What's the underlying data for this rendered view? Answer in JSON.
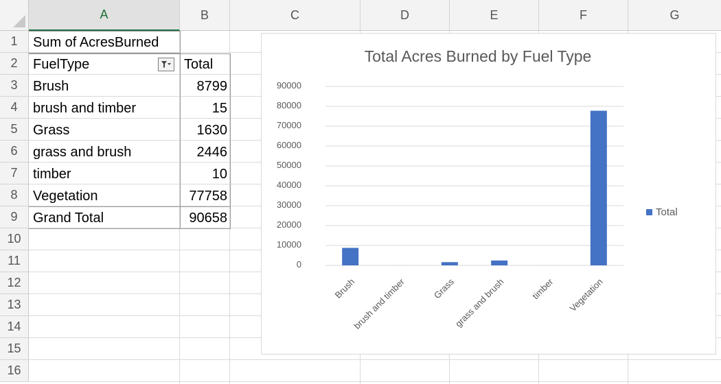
{
  "sheet": {
    "column_headers": [
      "A",
      "B",
      "C",
      "D",
      "E",
      "F",
      "G"
    ],
    "selected_column": "A",
    "row_headers": [
      "1",
      "2",
      "3",
      "4",
      "5",
      "6",
      "7",
      "8",
      "9",
      "10",
      "11",
      "12",
      "13",
      "14",
      "15",
      "16"
    ]
  },
  "pivot": {
    "title_label": "Sum of AcresBurned",
    "field_label": "FuelType",
    "value_header": "Total",
    "rows": [
      {
        "label": "Brush",
        "value": "8799"
      },
      {
        "label": "brush and timber",
        "value": "15"
      },
      {
        "label": "Grass",
        "value": "1630"
      },
      {
        "label": "grass and brush",
        "value": "2446"
      },
      {
        "label": "timber",
        "value": "10"
      },
      {
        "label": "Vegetation",
        "value": "77758"
      }
    ],
    "grand_total_label": "Grand Total",
    "grand_total_value": "90658",
    "filter_icon": "filter-dropdown-icon"
  },
  "chart_data": {
    "type": "bar",
    "title": "Total Acres Burned by Fuel Type",
    "categories": [
      "Brush",
      "brush and timber",
      "Grass",
      "grass and brush",
      "timber",
      "Vegetation"
    ],
    "series": [
      {
        "name": "Total",
        "values": [
          8799,
          15,
          1630,
          2446,
          10,
          77758
        ],
        "color": "#4472c4"
      }
    ],
    "ylim": [
      0,
      90000
    ],
    "y_ticks": [
      "0",
      "10000",
      "20000",
      "30000",
      "40000",
      "50000",
      "60000",
      "70000",
      "80000",
      "90000"
    ],
    "grid": true,
    "legend": "right"
  }
}
